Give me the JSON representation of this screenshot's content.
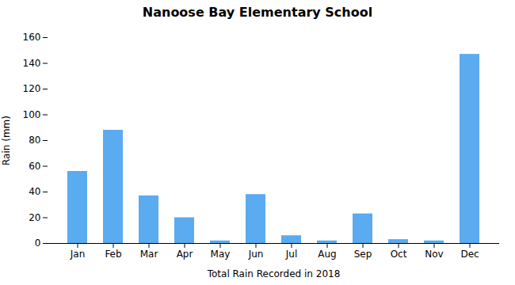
{
  "chart_data": {
    "type": "bar",
    "title": "Nanoose Bay Elementary School",
    "xlabel": "Total Rain Recorded in 2018",
    "ylabel": "Rain (mm)",
    "categories": [
      "Jan",
      "Feb",
      "Mar",
      "Apr",
      "May",
      "Jun",
      "Jul",
      "Aug",
      "Sep",
      "Oct",
      "Nov",
      "Dec"
    ],
    "values": [
      56,
      88,
      37,
      20,
      2,
      38,
      6,
      2,
      23,
      3,
      2,
      147
    ],
    "color": "#5aabf0",
    "ylim": [
      0,
      160
    ],
    "yticks": [
      0,
      20,
      40,
      60,
      80,
      100,
      120,
      140,
      160
    ],
    "grid": false
  }
}
